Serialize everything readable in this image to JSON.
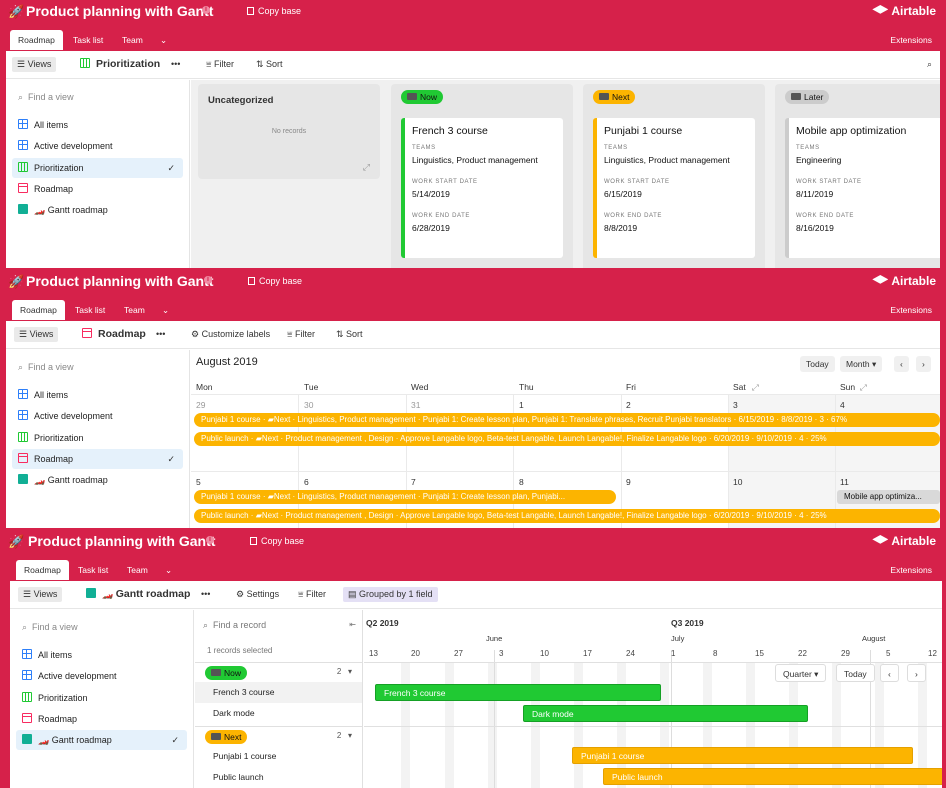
{
  "app": {
    "title": "Product planning with Gantt",
    "copy_base": "Copy base",
    "brand": "Airtable",
    "extensions": "Extensions",
    "info_glyph": "i",
    "tabs": [
      "Roadmap",
      "Task list",
      "Team"
    ]
  },
  "toolbar": {
    "views": "Views",
    "more": "•••",
    "filter": "Filter",
    "sort": "Sort",
    "customize_labels": "Customize labels",
    "settings": "Settings",
    "grouped": "Grouped by 1 field"
  },
  "sidebar": {
    "find_placeholder": "Find a view",
    "items": [
      "All items",
      "Active development",
      "Prioritization",
      "Roadmap",
      "Gantt roadmap"
    ],
    "check": "✓"
  },
  "panel1": {
    "view_name": "Prioritization",
    "uncategorized": "Uncategorized",
    "no_records": "No records",
    "columns": [
      {
        "label": "Now",
        "color": "#20c933",
        "card": {
          "title": "French 3 course",
          "teams": "Linguistics, Product management",
          "start": "5/14/2019",
          "end": "6/28/2019"
        }
      },
      {
        "label": "Next",
        "color": "#fcb400",
        "card": {
          "title": "Punjabi 1 course",
          "teams": "Linguistics, Product management",
          "start": "6/15/2019",
          "end": "8/8/2019"
        }
      },
      {
        "label": "Later",
        "color": "#cccccc",
        "card": {
          "title": "Mobile app optimization",
          "teams": "Engineering",
          "start": "8/11/2019",
          "end": "8/16/2019"
        }
      }
    ],
    "field_labels": {
      "teams": "TEAMS",
      "start": "WORK START DATE",
      "end": "WORK END DATE"
    }
  },
  "panel2": {
    "view_name": "Roadmap",
    "month_label": "August 2019",
    "today": "Today",
    "month_btn": "Month ▾",
    "prev": "‹",
    "next": "›",
    "weekdays": [
      "Mon",
      "Tue",
      "Wed",
      "Thu",
      "Fri",
      "Sat",
      "Sun"
    ],
    "week1": [
      "29",
      "30",
      "31",
      "1",
      "2",
      "3",
      "4"
    ],
    "week2": [
      "5",
      "6",
      "7",
      "8",
      "9",
      "10",
      "11"
    ],
    "events_week1": [
      "Punjabi 1 course · ▰Next · Linguistics, Product management · Punjabi 1: Create lesson plan, Punjabi 1: Translate phrases, Recruit Punjabi translators · 6/15/2019 · 8/8/2019 · 3 · 67%",
      "Public launch · ▰Next · Product management , Design · Approve Langable logo, Beta-test Langable, Launch Langable!, Finalize Langable logo · 6/20/2019 · 9/10/2019 · 4 · 25%"
    ],
    "events_week2": [
      "Punjabi 1 course · ▰Next · Linguistics, Product management · Punjabi 1: Create lesson plan, Punjabi...",
      "Public launch · ▰Next · Product management , Design · Approve Langable logo, Beta-test Langable, Launch Langable!, Finalize Langable logo · 6/20/2019 · 9/10/2019 · 4 · 25%",
      "Mobile app optimiza..."
    ]
  },
  "panel3": {
    "view_name": "Gantt roadmap",
    "find_record": "Find a record",
    "records_selected": "1 records selected",
    "groups": [
      {
        "label": "Now",
        "count": "2",
        "rows": [
          "French 3 course",
          "Dark mode"
        ]
      },
      {
        "label": "Next",
        "count": "2",
        "rows": [
          "Punjabi 1 course",
          "Public launch"
        ]
      }
    ],
    "caret": "▾",
    "quarters": [
      "Q2 2019",
      "Q3 2019"
    ],
    "months": [
      "June",
      "July",
      "August"
    ],
    "weeks": [
      "13",
      "20",
      "27",
      "3",
      "10",
      "17",
      "24",
      "1",
      "8",
      "15",
      "22",
      "29",
      "5",
      "12"
    ],
    "quarter_btn": "Quarter ▾",
    "today": "Today",
    "prev": "‹",
    "next": "›",
    "bars": [
      {
        "label": "French 3 course",
        "color": "green"
      },
      {
        "label": "Dark mode",
        "color": "green"
      },
      {
        "label": "Punjabi 1 course",
        "color": "yellow"
      },
      {
        "label": "Public launch",
        "color": "yellow"
      }
    ]
  }
}
